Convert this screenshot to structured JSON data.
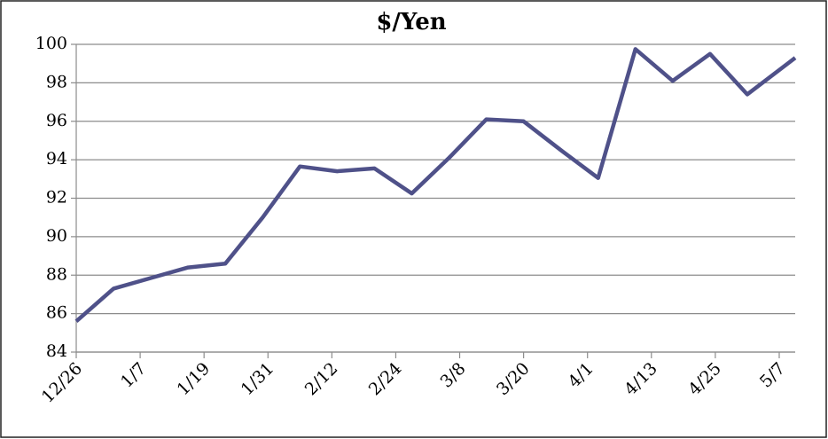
{
  "chart_data": {
    "type": "line",
    "title": "$/Yen",
    "x": [
      "12/26",
      "1/2",
      "1/9",
      "1/16",
      "1/23",
      "1/30",
      "2/6",
      "2/13",
      "2/20",
      "2/27",
      "3/6",
      "3/13",
      "3/20",
      "3/27",
      "4/3",
      "4/10",
      "4/17",
      "4/24",
      "5/1",
      "5/10"
    ],
    "series": [
      {
        "name": "$/Yen",
        "color": "#4f5189",
        "values": [
          85.6,
          87.3,
          87.85,
          88.4,
          88.6,
          91.0,
          93.65,
          93.4,
          93.55,
          92.25,
          94.1,
          96.1,
          96.0,
          94.5,
          93.05,
          99.75,
          98.1,
          99.5,
          97.4,
          99.3
        ]
      }
    ],
    "xlim": [
      "12/26",
      "5/10"
    ],
    "xticks": [
      "12/26",
      "1/7",
      "1/19",
      "1/31",
      "2/12",
      "2/24",
      "3/8",
      "3/20",
      "4/1",
      "4/13",
      "4/25",
      "5/7"
    ],
    "ylim": [
      84,
      100
    ],
    "yticks": [
      84,
      86,
      88,
      90,
      92,
      94,
      96,
      98,
      100
    ],
    "grid": true
  }
}
